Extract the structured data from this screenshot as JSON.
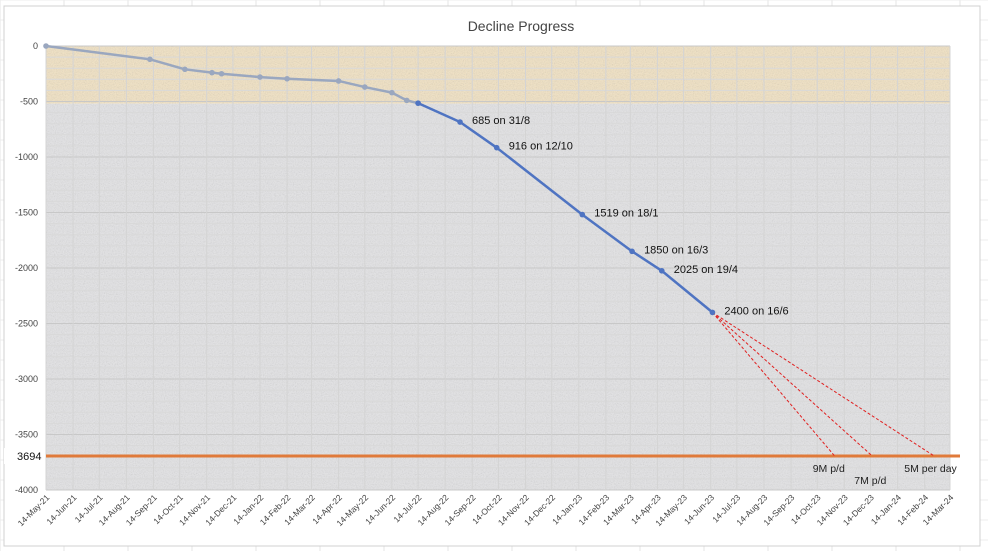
{
  "chart_data": {
    "type": "line",
    "title": "Decline Progress",
    "xlabel": "",
    "ylabel": "",
    "ylim": [
      -4000,
      0
    ],
    "yticks": [
      0,
      -500,
      -1000,
      -1500,
      -2000,
      -2500,
      -3000,
      -3500,
      -4000
    ],
    "ytick_labels": [
      "0",
      "-500",
      "-1000",
      "-1500",
      "-2000",
      "-2500",
      "-3000",
      "-3500",
      "-4000"
    ],
    "xlim": [
      "2021-05-14",
      "2024-03-14"
    ],
    "x_tick_labels": [
      "14-May-21",
      "14-Jun-21",
      "14-Jul-21",
      "14-Aug-21",
      "14-Sep-21",
      "14-Oct-21",
      "14-Nov-21",
      "14-Dec-21",
      "14-Jan-22",
      "14-Feb-22",
      "14-Mar-22",
      "14-Apr-22",
      "14-May-22",
      "14-Jun-22",
      "14-Jul-22",
      "14-Aug-22",
      "14-Sep-22",
      "14-Oct-22",
      "14-Nov-22",
      "14-Dec-22",
      "14-Jan-23",
      "14-Feb-23",
      "14-Mar-23",
      "14-Apr-23",
      "14-May-23",
      "14-Jun-23",
      "14-Jul-23",
      "14-Aug-23",
      "14-Sep-23",
      "14-Oct-23",
      "14-Nov-23",
      "14-Dec-23",
      "14-Jan-24",
      "14-Feb-24",
      "14-Mar-24"
    ],
    "grid": true,
    "bands": [
      {
        "from": 0,
        "to": -520,
        "color": "#f3e3c3"
      },
      {
        "from": -520,
        "to": -4000,
        "color": "#e4e4e6"
      }
    ],
    "series": [
      {
        "color": "#9aa7bf",
        "points": [
          {
            "x": "2021-05-14",
            "y": 0
          },
          {
            "x": "2021-09-10",
            "y": -120
          },
          {
            "x": "2021-10-20",
            "y": -210
          },
          {
            "x": "2021-11-20",
            "y": -240
          },
          {
            "x": "2021-12-01",
            "y": -250
          },
          {
            "x": "2022-01-14",
            "y": -280
          },
          {
            "x": "2022-02-14",
            "y": -295
          },
          {
            "x": "2022-04-14",
            "y": -315
          },
          {
            "x": "2022-05-14",
            "y": -370
          },
          {
            "x": "2022-06-14",
            "y": -420
          },
          {
            "x": "2022-07-01",
            "y": -490
          },
          {
            "x": "2022-07-14",
            "y": -515
          }
        ]
      },
      {
        "color": "#4f74c2",
        "points": [
          {
            "x": "2022-07-14",
            "y": -515
          },
          {
            "x": "2022-08-31",
            "y": -685
          },
          {
            "x": "2022-10-12",
            "y": -916
          },
          {
            "x": "2023-01-18",
            "y": -1519
          },
          {
            "x": "2023-03-16",
            "y": -1850
          },
          {
            "x": "2023-04-19",
            "y": -2025
          },
          {
            "x": "2023-06-16",
            "y": -2400
          }
        ]
      }
    ],
    "annotations": [
      {
        "text": "685 on 31/8",
        "x": "2022-08-31",
        "y": -685
      },
      {
        "text": "916 on 12/10",
        "x": "2022-10-12",
        "y": -916
      },
      {
        "text": "1519 on 18/1",
        "x": "2023-01-18",
        "y": -1519
      },
      {
        "text": "1850 on 16/3",
        "x": "2023-03-16",
        "y": -1850
      },
      {
        "text": "2025 on 19/4",
        "x": "2023-04-19",
        "y": -2025
      },
      {
        "text": "2400 on 16/6",
        "x": "2023-06-16",
        "y": -2400
      }
    ],
    "target_line": {
      "y": -3694,
      "label": "3694",
      "color": "#e07a3a"
    },
    "projections": [
      {
        "label": "9M p/d",
        "from": {
          "x": "2023-06-16",
          "y": -2400
        },
        "to": {
          "x": "2023-11-03",
          "y": -3694
        },
        "color": "#e02020"
      },
      {
        "label": "7M p/d",
        "from": {
          "x": "2023-06-16",
          "y": -2400
        },
        "to": {
          "x": "2023-12-16",
          "y": -3694
        },
        "color": "#e02020"
      },
      {
        "label": "5M per day",
        "from": {
          "x": "2023-06-16",
          "y": -2400
        },
        "to": {
          "x": "2024-02-25",
          "y": -3694
        },
        "color": "#e02020"
      }
    ]
  }
}
